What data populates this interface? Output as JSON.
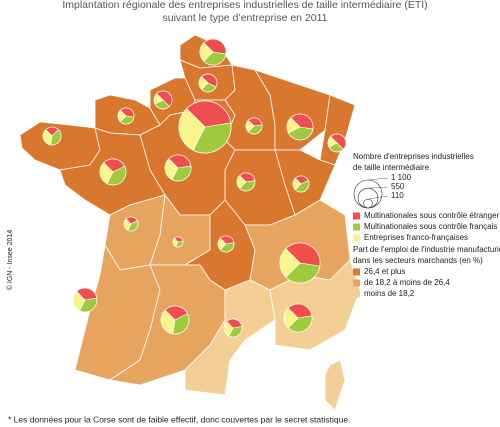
{
  "title": [
    "Implantation régionale des entreprises industrielles de taille intermédiaire (ETI)",
    "suivant le type d’entreprise en 2011"
  ],
  "copyright": "© IGN - Insee 2014",
  "footnote": "* Les données pour la Corse sont de faible effectif, donc couvertes par le secret statistique.",
  "size_legend": {
    "title": [
      "Nombre d'entreprises industrielles",
      "de taille intermédiaire"
    ],
    "sizes": [
      {
        "value": 1100,
        "label": "1 100"
      },
      550,
      110
    ]
  },
  "type_legend": {
    "items": [
      {
        "label": "Multinationales sous contrôle étranger",
        "color": "#f04e4e"
      },
      {
        "label": "Multinationales sous contrôle français",
        "color": "#9dcb3c"
      },
      {
        "label": "Entreprises franco-françaises",
        "color": "#f9f58c"
      }
    ]
  },
  "class_legend": {
    "title": [
      "Part de l'emploi de l'industrie manufacturière",
      "dans les secteurs marchands (en %)"
    ],
    "items": [
      {
        "label": "26,4 et plus",
        "color": "#d9772e"
      },
      {
        "label": "de 18,2 à moins de 26,4",
        "color": "#e6a45e"
      },
      {
        "label": "moins de 18,2",
        "color": "#f3cf96"
      }
    ]
  },
  "pies": [
    {
      "total": 950,
      "shares": [
        40,
        35,
        25
      ]
    },
    {
      "total": 450,
      "shares": [
        45,
        30,
        25
      ]
    },
    {
      "total": 450,
      "shares": [
        50,
        30,
        20
      ]
    },
    {
      "total": 360,
      "shares": [
        40,
        35,
        25
      ]
    },
    {
      "total": 450,
      "shares": [
        25,
        40,
        35
      ]
    },
    {
      "total": 3800,
      "shares": [
        35,
        35,
        30
      ]
    },
    {
      "total": 360,
      "shares": [
        35,
        40,
        25
      ]
    },
    {
      "total": 950,
      "shares": [
        40,
        40,
        20
      ]
    },
    {
      "total": 450,
      "shares": [
        50,
        30,
        20
      ]
    },
    {
      "total": 950,
      "shares": [
        30,
        40,
        30
      ]
    },
    {
      "total": 950,
      "shares": [
        35,
        35,
        30
      ]
    },
    {
      "total": 450,
      "shares": [
        35,
        40,
        25
      ]
    },
    {
      "total": 360,
      "shares": [
        30,
        45,
        25
      ]
    },
    {
      "total": 275,
      "shares": [
        30,
        40,
        30
      ]
    },
    {
      "total": 140,
      "shares": [
        35,
        35,
        30
      ]
    },
    {
      "total": 360,
      "shares": [
        35,
        40,
        25
      ]
    },
    {
      "total": 2250,
      "shares": [
        40,
        35,
        25
      ]
    },
    {
      "total": 800,
      "shares": [
        35,
        35,
        30
      ]
    },
    {
      "total": 1100,
      "shares": [
        30,
        35,
        35
      ]
    },
    {
      "total": 450,
      "shares": [
        35,
        35,
        30
      ]
    },
    {
      "total": 1100,
      "shares": [
        35,
        40,
        25
      ]
    }
  ]
}
